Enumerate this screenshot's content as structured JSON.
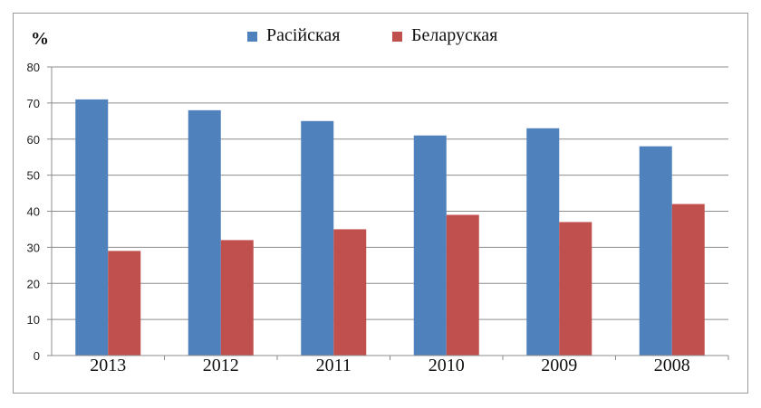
{
  "chart_data": {
    "type": "bar",
    "ylabel": "%",
    "ylim": [
      0,
      80
    ],
    "yticks": [
      "0",
      "10",
      "20",
      "30",
      "40",
      "50",
      "60",
      "70",
      "80"
    ],
    "grid": true,
    "legend_position": "top",
    "categories": [
      "2013",
      "2012",
      "2011",
      "2010",
      "2009",
      "2008"
    ],
    "series": [
      {
        "name": "Расійская",
        "color": "#4f81bd",
        "values": [
          71,
          68,
          65,
          61,
          63,
          58
        ]
      },
      {
        "name": "Беларуская",
        "color": "#c0504d",
        "values": [
          29,
          32,
          35,
          39,
          37,
          42
        ]
      }
    ]
  }
}
